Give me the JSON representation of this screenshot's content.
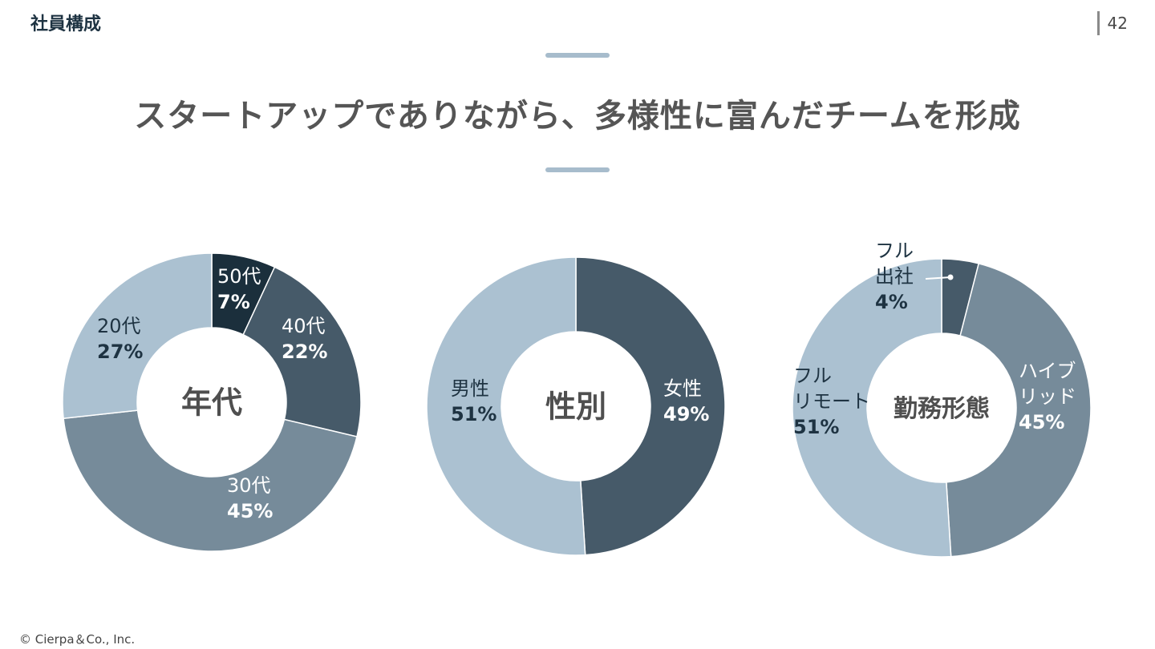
{
  "header": {
    "section_title": "社員構成",
    "page_number": "42",
    "headline": "スタートアップでありながら、多様性に富んだチームを形成"
  },
  "footer": {
    "copyright": "© Cierpa＆Co., Inc."
  },
  "colors": {
    "darkest": "#1b2f3c",
    "dark": "#465a69",
    "mid": "#768b9a",
    "light": "#abc1d1",
    "rule": "#a7bccc"
  },
  "chart_data": [
    {
      "type": "pie",
      "center_label": "年代",
      "slices": [
        {
          "label": "50代",
          "value": 7,
          "display": "7%",
          "color": "#1b2f3c"
        },
        {
          "label": "40代",
          "value": 22,
          "display": "22%",
          "color": "#465a69"
        },
        {
          "label": "30代",
          "value": 45,
          "display": "45%",
          "color": "#768b9a"
        },
        {
          "label": "20代",
          "value": 27,
          "display": "27%",
          "color": "#abc1d1"
        }
      ]
    },
    {
      "type": "pie",
      "center_label": "性別",
      "slices": [
        {
          "label": "女性",
          "value": 49,
          "display": "49%",
          "color": "#465a69"
        },
        {
          "label": "男性",
          "value": 51,
          "display": "51%",
          "color": "#abc1d1"
        }
      ]
    },
    {
      "type": "pie",
      "center_label": "勤務形態",
      "slices": [
        {
          "label": "フル出社",
          "value": 4,
          "display": "4%",
          "color": "#465a69"
        },
        {
          "label": "ハイブリッド",
          "value": 45,
          "display": "45%",
          "color": "#768b9a"
        },
        {
          "label": "フルリモート",
          "value": 51,
          "display": "51%",
          "color": "#abc1d1"
        }
      ]
    }
  ]
}
